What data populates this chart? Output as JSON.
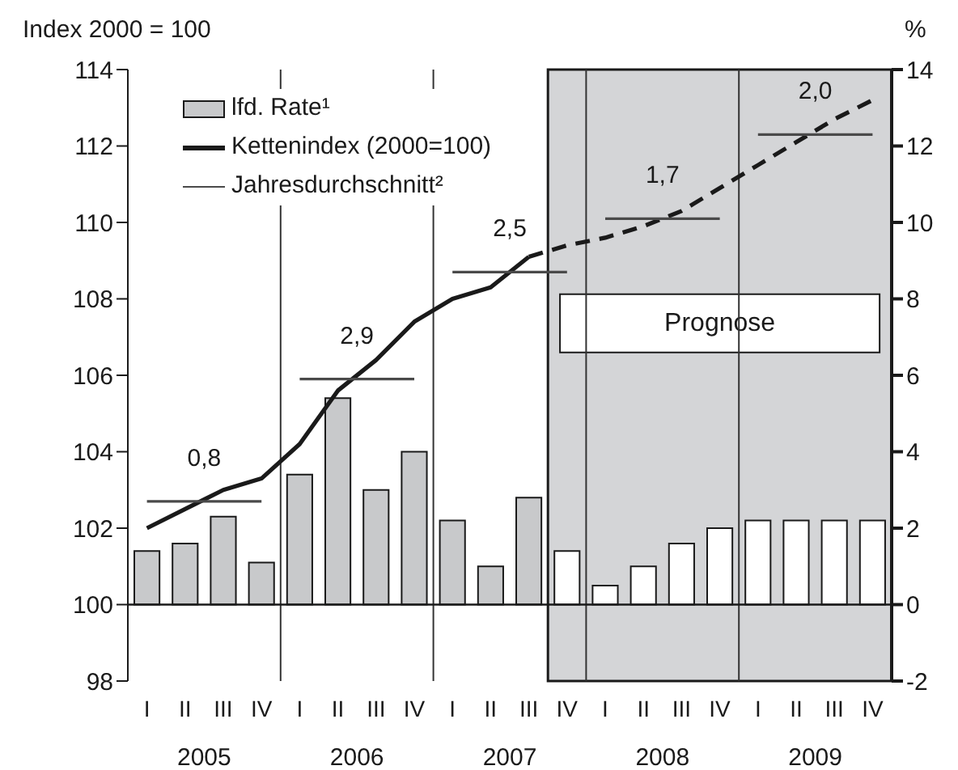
{
  "chart_data": {
    "type": "bar",
    "ylabel": "Index 2000 = 100",
    "y2label": "%",
    "categories": [
      "I",
      "II",
      "III",
      "IV",
      "I",
      "II",
      "III",
      "IV",
      "I",
      "II",
      "III",
      "IV",
      "I",
      "II",
      "III",
      "IV",
      "I",
      "II",
      "III",
      "IV"
    ],
    "ylim": [
      98,
      114
    ],
    "yticks": [
      98,
      100,
      102,
      104,
      106,
      108,
      110,
      112,
      114
    ],
    "y2lim": [
      -2,
      14
    ],
    "y2ticks": [
      -2,
      0,
      2,
      4,
      6,
      8,
      10,
      12,
      14
    ],
    "legend": "top left",
    "marker": "none",
    "series": [
      {
        "name": "lfd. Rate¹",
        "axis": "y2",
        "color": "#c8c9cb",
        "values": [
          1.4,
          1.6,
          2.3,
          1.1,
          3.4,
          5.4,
          3.0,
          4.0,
          2.2,
          1.0,
          2.8,
          1.4,
          0.5,
          1.0,
          1.6,
          2.0,
          2.2,
          2.2,
          2.2,
          2.2
        ],
        "colors": [
          "#c8c9cb",
          "#c8c9cb",
          "#c8c9cb",
          "#c8c9cb",
          "#c8c9cb",
          "#c8c9cb",
          "#c8c9cb",
          "#c8c9cb",
          "#c8c9cb",
          "#c8c9cb",
          "#c8c9cb",
          "#ffffff",
          "#ffffff",
          "#ffffff",
          "#ffffff",
          "#ffffff",
          "#ffffff",
          "#ffffff",
          "#ffffff",
          "#ffffff"
        ]
      },
      {
        "name": "Kettenindex (2000=100)",
        "type": "line",
        "color": "#1a1a1a",
        "line_style": "solid",
        "values": [
          102.0,
          102.5,
          103.0,
          103.3,
          104.2,
          105.6,
          106.4,
          107.4,
          108.0,
          108.3,
          109.1,
          null,
          null,
          null,
          null,
          null,
          null,
          null,
          null,
          null
        ]
      },
      {
        "type": "line",
        "color": "#1a1a1a",
        "line_style": "dashed",
        "values": [
          null,
          null,
          null,
          null,
          null,
          null,
          null,
          null,
          null,
          null,
          109.1,
          109.4,
          109.6,
          109.9,
          110.3,
          110.9,
          111.5,
          112.1,
          112.7,
          113.2
        ]
      },
      {
        "name": "Jahresdurchschnitt²",
        "type": "line",
        "color": "#4a4a4a",
        "line_style": "solid",
        "values": [
          102.7,
          102.7,
          102.7,
          102.7,
          null,
          null,
          null,
          null,
          null,
          null,
          null,
          null,
          null,
          null,
          null,
          null,
          null,
          null,
          null,
          null
        ]
      },
      {
        "type": "line",
        "color": "#4a4a4a",
        "line_style": "solid",
        "values": [
          null,
          null,
          null,
          null,
          105.9,
          105.9,
          105.9,
          105.9,
          null,
          null,
          null,
          null,
          null,
          null,
          null,
          null,
          null,
          null,
          null,
          null
        ]
      },
      {
        "type": "line",
        "color": "#4a4a4a",
        "line_style": "solid",
        "values": [
          null,
          null,
          null,
          null,
          null,
          null,
          null,
          null,
          108.7,
          108.7,
          108.7,
          108.7,
          null,
          null,
          null,
          null,
          null,
          null,
          null,
          null
        ]
      },
      {
        "type": "line",
        "color": "#4a4a4a",
        "line_style": "solid",
        "values": [
          null,
          null,
          null,
          null,
          null,
          null,
          null,
          null,
          null,
          null,
          null,
          null,
          110.1,
          110.1,
          110.1,
          110.1,
          null,
          null,
          null,
          null
        ]
      },
      {
        "type": "line",
        "color": "#4a4a4a",
        "line_style": "solid",
        "values": [
          null,
          null,
          null,
          null,
          null,
          null,
          null,
          null,
          null,
          null,
          null,
          null,
          null,
          null,
          null,
          null,
          112.3,
          112.3,
          112.3,
          112.3
        ]
      }
    ],
    "ref_lines": [
      {
        "axis": "y2",
        "value": 0,
        "color": "#1a1a1a"
      }
    ],
    "annotations": [
      "0,8",
      "2,9",
      "2,5",
      "1,7",
      "2,0",
      "Prognose",
      "2005",
      "2006",
      "2007",
      "2008",
      "2009"
    ]
  }
}
